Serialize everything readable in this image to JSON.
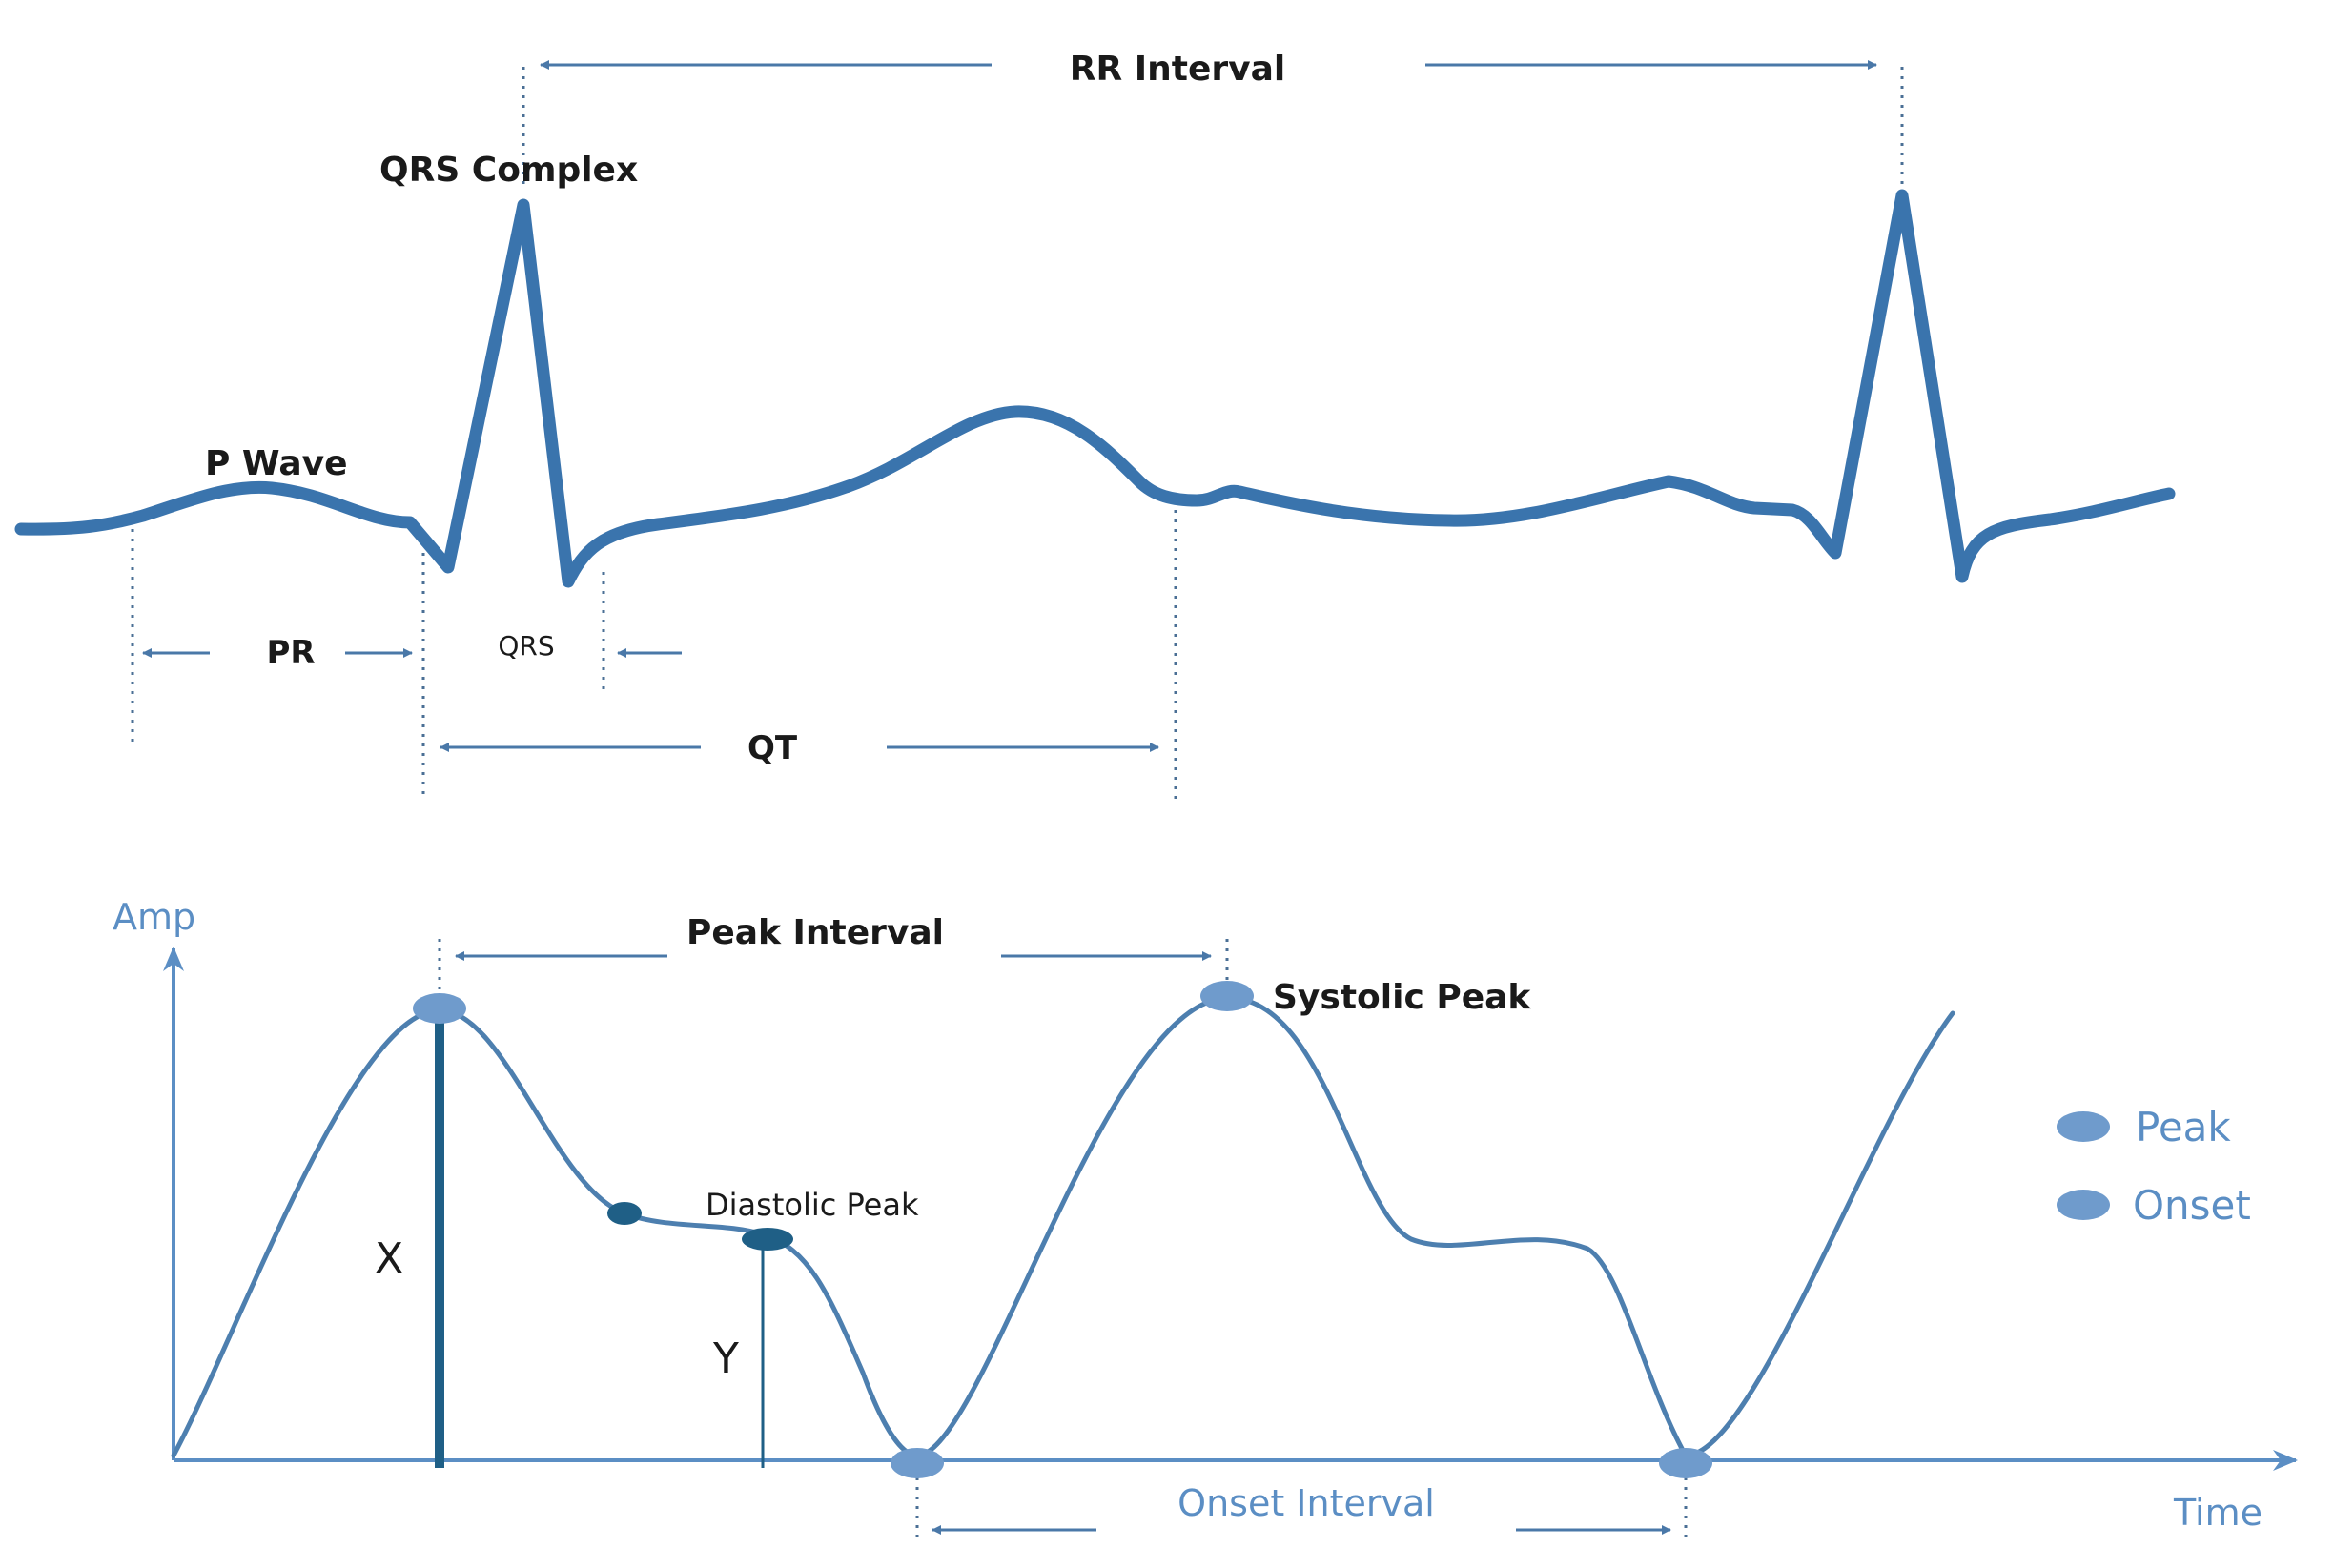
{
  "ecg": {
    "rr_interval": "RR Interval",
    "qrs_complex": "QRS Complex",
    "p_wave": "P Wave",
    "pr": "PR",
    "qrs": "QRS",
    "qt": "QT"
  },
  "ppg": {
    "y_axis": "Amp",
    "x_axis": "Time",
    "peak_interval": "Peak Interval",
    "systolic_peak": "Systolic Peak",
    "diastolic_peak": "Diastolic Peak",
    "x_label": "X",
    "y_label": "Y",
    "onset_interval": "Onset Interval"
  },
  "legend": {
    "items": [
      {
        "label": "Peak",
        "color": "#6f9bcc"
      },
      {
        "label": "Onset",
        "color": "#6f9bcc"
      }
    ]
  },
  "colors": {
    "ecg_line": "#3a74ad",
    "ppg_line": "#4d7faf",
    "marker_light": "#6f9bcc",
    "marker_dark": "#1f5f86",
    "axis": "#5b8ec4"
  }
}
